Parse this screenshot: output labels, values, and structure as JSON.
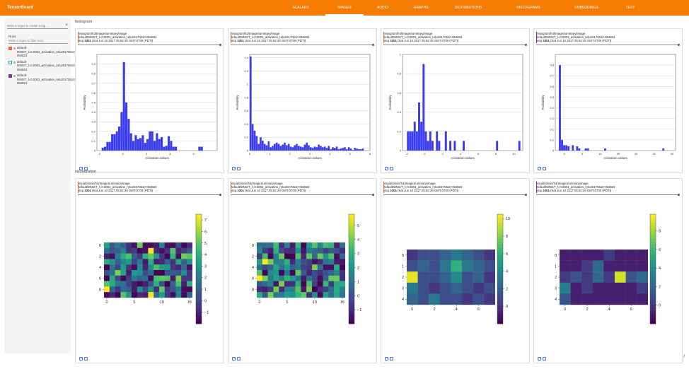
{
  "header": {
    "title": "TensorBoard",
    "tabs": [
      "SCALARS",
      "IMAGES",
      "AUDIO",
      "GRAPHS",
      "DISTRIBUTIONS",
      "HISTOGRAMS",
      "EMBEDDINGS",
      "TEXT"
    ],
    "active_tab": "IMAGES"
  },
  "sidebar": {
    "regex_placeholder": "Write a regex to create a tag ...",
    "runs_label": "Runs",
    "filter_placeholder": "Write a regex to filter runs",
    "runs": [
      {
        "name": "default-MNIST_l=0.0001_activation_relu20170610-054823",
        "color": "#f46a2e",
        "checked": true
      },
      {
        "name": "default-MNIST_l=0.0001_activation_relu20170610-054823",
        "color": "#12b5cb",
        "checked": false
      },
      {
        "name": "default-MNIST_l=0.0001_activation_relu20170610-054823",
        "color": "#8e24aa",
        "checked": true
      }
    ]
  },
  "sections": [
    {
      "title": "histogram",
      "cards": [
        {
          "tag": "histogram/h3/ImageSummary/image",
          "run": "default/MNIST_l=0.0001_activation_relu20170610-054823",
          "step_label": "step",
          "step": "2301",
          "time": "(Sat Jun 10 2017 05:52:26 GMT-0700 (PDT))",
          "accent": "#f46a2e"
        },
        {
          "tag": "histogram/h2/ImageSummary/image",
          "run": "default/MNIST_l=0.0001_activation_relu20170610-054823",
          "step_label": "step",
          "step": "2301",
          "time": "(Sat Jun 10 2017 05:52:20 GMT-0700 (PDT))",
          "accent": "#f46a2e"
        },
        {
          "tag": "histogram/h4/ImageSummary/image",
          "run": "default/MNIST_l=0.0001_activation_relu20170610-054823",
          "step_label": "step",
          "step": "2301",
          "time": "(Sat Jun 10 2017 05:52:25 GMT-0700 (PDT))",
          "accent": "#f46a2e"
        },
        {
          "tag": "histogram/h4/ImageSummary/image",
          "run": "default/MNIST_l=0.0001_activation_relu20170610-054823",
          "step_label": "step",
          "step": "2301",
          "time": "(Sat Jun 10 2017 05:52:26 GMT-0700 (PDT))",
          "accent": "#8e24aa"
        }
      ]
    },
    {
      "title": "visualization",
      "cards": [
        {
          "tag": "visualization/h3/ImageSummary/image",
          "run": "default/MNIST_l=0.0001_activation_relu20170610-054823",
          "step_label": "step",
          "step": "2301",
          "time": "(Sat Jun 10 2017 05:52:26 GMT-0700 (PDT))",
          "accent": "#f46a2e"
        },
        {
          "tag": "visualization/h3/ImageSummary/image",
          "run": "default/MNIST_l=0.0001_activation_relu20170610-054823",
          "step_label": "step",
          "step": "2301",
          "time": "(Sat Jun 10 2017 05:52:20 GMT-0700 (PDT))",
          "accent": "#f46a2e"
        },
        {
          "tag": "visualization/h4/ImageSummary/image",
          "run": "default/MNIST_l=0.0001_activation_relu20170610-054823",
          "step_label": "step",
          "step": "2301",
          "time": "(Sat Jun 10 2017 05:52:25 GMT-0700 (PDT))",
          "accent": "#f46a2e"
        },
        {
          "tag": "visualization/h4/ImageSummary/image",
          "run": "default/MNIST_l=0.0001_activation_relu20170610-054823",
          "step_label": "step",
          "step": "2301",
          "time": "(Sat Jun 10 2017 05:52:26 GMT-0700 (PDT))",
          "accent": "#8e24aa"
        }
      ]
    }
  ],
  "chart_data": [
    {
      "type": "bar",
      "xlabel": "Activation values",
      "ylabel": "Probability",
      "bar_color": "#3b3bf0",
      "xlim": [
        -2.2,
        8
      ],
      "ylim": [
        0,
        1.0
      ],
      "xticks": [
        -2,
        0,
        2,
        4,
        6
      ],
      "yticks": [
        0.0,
        0.1,
        0.2,
        0.3,
        0.4,
        0.5,
        0.6,
        0.7,
        0.8,
        0.9
      ],
      "bins_start": -1.8,
      "bin_width": 0.2,
      "values": [
        0.03,
        0.04,
        0.09,
        0.09,
        0.17,
        0.17,
        0.2,
        0.25,
        0.4,
        0.92,
        0.5,
        0.33,
        0.18,
        0.1,
        0.16,
        0.12,
        0.13,
        0.16,
        0.08,
        0.12,
        0.2,
        0.2,
        0.1,
        0.18,
        0.12,
        0.14,
        0.04,
        0.05,
        0.15,
        0.1,
        0.04,
        0.04,
        0,
        0,
        0,
        0,
        0,
        0,
        0,
        0,
        0,
        0.04,
        0.04
      ]
    },
    {
      "type": "bar",
      "xlabel": "Activation values",
      "ylabel": "Probability",
      "bar_color": "#3b3bf0",
      "xlim": [
        0,
        6
      ],
      "ylim": [
        0,
        1.45
      ],
      "xticks": [
        0,
        1,
        2,
        3,
        4,
        5,
        6
      ],
      "yticks": [
        0.0,
        0.2,
        0.4,
        0.6,
        0.8,
        1.0,
        1.2,
        1.4
      ],
      "bins_start": 0,
      "bin_width": 0.1,
      "values": [
        1.42,
        0.4,
        0.3,
        0.22,
        0.1,
        0.2,
        0.15,
        0.1,
        0.08,
        0.14,
        0.05,
        0.07,
        0.1,
        0.12,
        0.1,
        0.07,
        0.09,
        0.12,
        0.08,
        0.1,
        0.06,
        0.05,
        0.08,
        0.1,
        0.07,
        0.06,
        0.05,
        0.09,
        0.12,
        0.08,
        0.05,
        0.04,
        0.06,
        0.05,
        0.09,
        0.07,
        0.05,
        0.06,
        0.04,
        0.07,
        0.02,
        0.05,
        0.04,
        0.06,
        0.02,
        0.03,
        0.04,
        0.05,
        0.02,
        0.05,
        0.03,
        0.01,
        0.04,
        0.03,
        0.02,
        0.02,
        0.03
      ]
    },
    {
      "type": "bar",
      "xlabel": "Activation values",
      "ylabel": "Probability",
      "bar_color": "#3b3bf0",
      "xlim": [
        -2.5,
        11
      ],
      "ylim": [
        0,
        1.0
      ],
      "xticks": [
        -2,
        0,
        2,
        4,
        6,
        8,
        10
      ],
      "yticks": [
        0.0,
        0.2,
        0.4,
        0.6,
        0.8,
        1.0
      ],
      "bins_start": -2.0,
      "bin_width": 0.25,
      "values": [
        0.2,
        0.2,
        0.2,
        0.3,
        0.2,
        0.5,
        0.3,
        0.9,
        0.2,
        0.1,
        0.2,
        0.1,
        0,
        0.2,
        0.1,
        0,
        0,
        0.2,
        0,
        0.1,
        0,
        0.1,
        0,
        0,
        0,
        0.1,
        0,
        0,
        0,
        0,
        0,
        0,
        0,
        0,
        0,
        0,
        0,
        0,
        0,
        0,
        0.1,
        0,
        0,
        0,
        0,
        0,
        0,
        0,
        0,
        0,
        0.1
      ]
    },
    {
      "type": "bar",
      "xlabel": "Activation values",
      "ylabel": "Probability",
      "bar_color": "#3b3bf0",
      "xlim": [
        -2.5,
        31
      ],
      "ylim": [
        0,
        0.9
      ],
      "xticks": [
        0,
        5,
        10,
        15,
        20,
        25,
        30
      ],
      "yticks": [
        0.0,
        0.1,
        0.2,
        0.3,
        0.4,
        0.5,
        0.6,
        0.7,
        0.8
      ],
      "bins_start": -1.5,
      "bin_width": 0.6,
      "values": [
        0.8,
        0.1,
        0.05,
        0.05,
        0.04,
        0,
        0.05,
        0,
        0.04,
        0.02,
        0,
        0,
        0.02,
        0.02,
        0,
        0,
        0,
        0,
        0,
        0,
        0,
        0.02,
        0,
        0,
        0,
        0,
        0,
        0,
        0,
        0,
        0,
        0,
        0,
        0,
        0,
        0,
        0,
        0,
        0,
        0,
        0,
        0,
        0,
        0,
        0,
        0,
        0,
        0,
        0.02
      ]
    },
    {
      "type": "heatmap",
      "colormap": "viridis",
      "rows": 10,
      "cols": 16,
      "vmin": -2,
      "vmax": 7.5,
      "xticks": [
        0,
        5,
        10,
        15
      ],
      "yticks": [
        0,
        2,
        4,
        6,
        8
      ],
      "cbar_ticks": [
        -1,
        0,
        1,
        2,
        3,
        4,
        5,
        6,
        7
      ]
    },
    {
      "type": "heatmap",
      "colormap": "viridis",
      "rows": 10,
      "cols": 16,
      "vmin": -2,
      "vmax": 5.8,
      "xticks": [
        0,
        5,
        10,
        15
      ],
      "yticks": [
        0,
        2,
        4,
        6,
        8
      ],
      "cbar_ticks": [
        -1,
        0,
        1,
        2,
        3,
        4,
        5
      ]
    },
    {
      "type": "heatmap",
      "colormap": "viridis",
      "rows": 5,
      "cols": 8,
      "vmin": -2,
      "vmax": 10.5,
      "xticks": [
        0,
        2,
        4,
        6
      ],
      "yticks": [
        0,
        1,
        2,
        3,
        4
      ],
      "cbar_ticks": [
        0,
        2,
        4,
        6,
        8,
        10
      ],
      "values": [
        [
          0,
          1,
          1,
          2,
          3,
          2,
          1,
          0
        ],
        [
          1,
          2,
          1,
          3,
          6,
          3,
          2,
          1
        ],
        [
          10,
          1,
          1,
          2,
          4,
          1,
          2,
          0
        ],
        [
          3,
          1,
          0,
          1,
          2,
          1,
          0,
          1
        ],
        [
          2,
          1,
          3,
          1,
          1,
          0,
          1,
          0
        ]
      ]
    },
    {
      "type": "heatmap",
      "colormap": "viridis",
      "rows": 5,
      "cols": 8,
      "vmin": -2,
      "vmax": 9.8,
      "xticks": [
        0,
        2,
        4,
        6
      ],
      "yticks": [
        0,
        1,
        2,
        3,
        4
      ],
      "cbar_ticks": [
        0,
        2,
        4,
        6,
        8
      ],
      "values": [
        [
          -1,
          -1,
          -1,
          -1,
          0,
          -1,
          -1,
          -1
        ],
        [
          -1,
          -1,
          0,
          2,
          -1,
          -1,
          -1,
          -1
        ],
        [
          0,
          1,
          0,
          2,
          0,
          9,
          1,
          2
        ],
        [
          3,
          -1,
          0,
          -1,
          -1,
          -1,
          -1,
          0
        ],
        [
          1,
          -1,
          -1,
          -1,
          -1,
          -1,
          -1,
          -1
        ]
      ]
    }
  ],
  "corner_text": "/"
}
